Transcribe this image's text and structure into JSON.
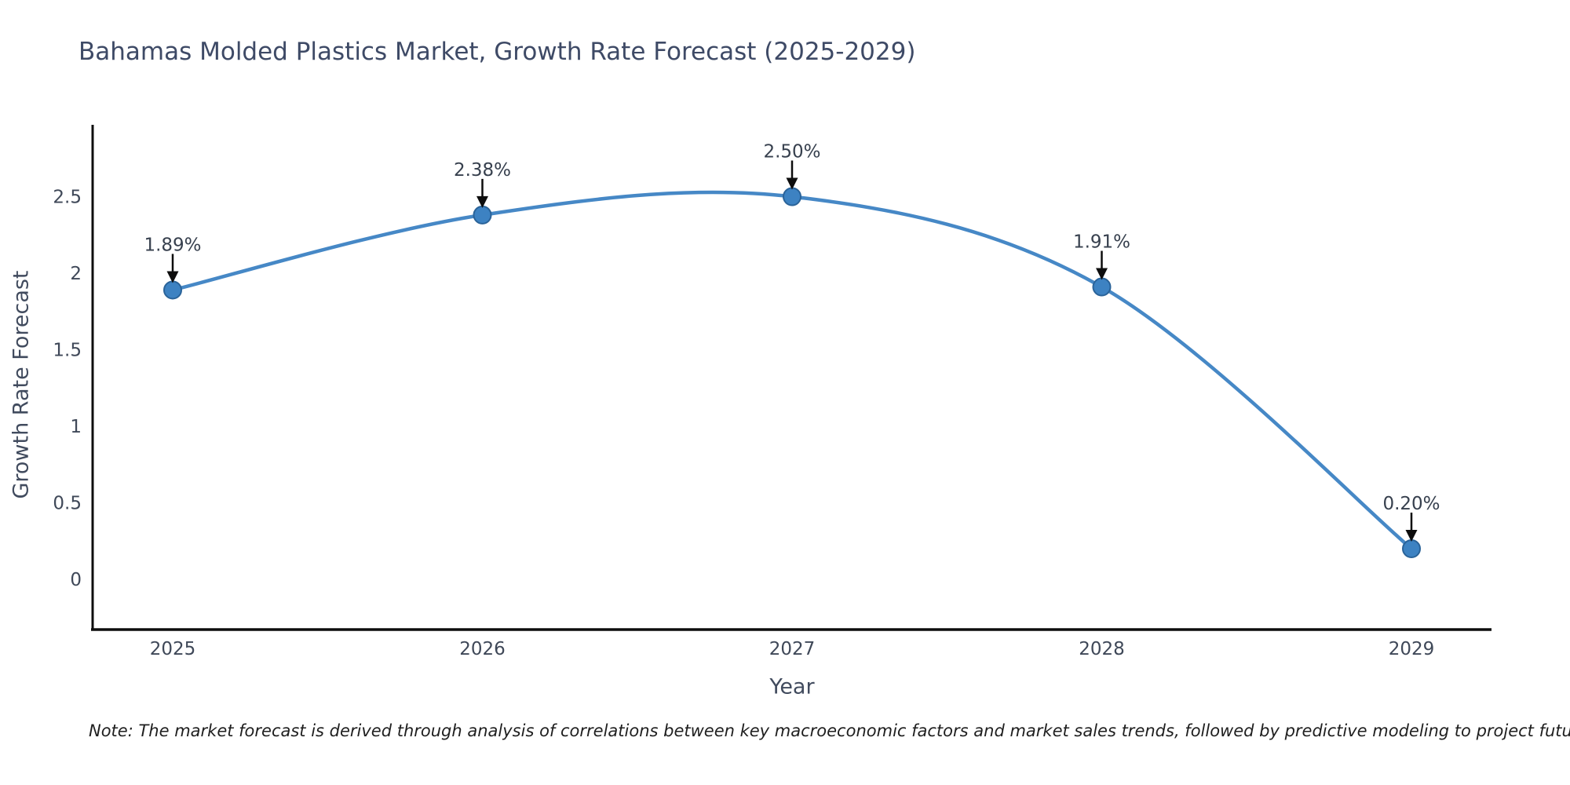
{
  "title": "Bahamas Molded Plastics Market, Growth Rate Forecast (2025-2029)",
  "note": "Note: The market forecast is derived through analysis of correlations between key macroeconomic factors and market sales trends, followed by predictive modeling to project future sales",
  "chart_data": {
    "type": "line",
    "title": "Bahamas Molded Plastics Market, Growth Rate Forecast (2025-2029)",
    "xlabel": "Year",
    "ylabel": "Growth Rate Forecast",
    "x": [
      2025,
      2026,
      2027,
      2028,
      2029
    ],
    "values": [
      1.89,
      2.38,
      2.5,
      1.91,
      0.2
    ],
    "point_labels": [
      "1.89%",
      "2.38%",
      "2.50%",
      "1.91%",
      "0.20%"
    ],
    "x_tick_labels": [
      "2025",
      "2026",
      "2027",
      "2028",
      "2029"
    ],
    "y_ticks": [
      0,
      0.5,
      1,
      1.5,
      2,
      2.5
    ],
    "y_tick_labels": [
      "0",
      "0.5",
      "1",
      "1.5",
      "2",
      "2.5"
    ],
    "xlim": [
      2024.74,
      2029.26
    ],
    "ylim": [
      -0.33,
      2.99
    ],
    "grid": false,
    "legend": false,
    "line_smooth": true,
    "colors": {
      "line": "#4688c6",
      "marker_fill": "#3d82c2",
      "marker_edge": "#2a6399",
      "arrow": "#0d0d0d",
      "annotation_text": "#37404e",
      "tick_text": "#3f4858",
      "axis_spine": "#0d0d0d"
    }
  }
}
